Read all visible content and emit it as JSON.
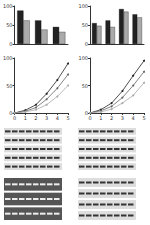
{
  "chart_data": [
    {
      "type": "bar",
      "categories": [
        null,
        null,
        null
      ],
      "ylim": [
        0,
        100
      ],
      "yticks": [
        0,
        50,
        100
      ],
      "series": [
        {
          "name": null,
          "color": "#222222",
          "values": [
            88,
            62,
            45
          ]
        },
        {
          "name": null,
          "color": "#aaaaaa",
          "values": [
            62,
            38,
            32
          ]
        }
      ]
    },
    {
      "type": "bar",
      "categories": [
        null,
        null,
        null,
        null
      ],
      "ylim": [
        0,
        100
      ],
      "yticks": [
        0,
        50,
        100
      ],
      "series": [
        {
          "name": null,
          "color": "#222222",
          "values": [
            55,
            62,
            92,
            78
          ]
        },
        {
          "name": null,
          "color": "#aaaaaa",
          "values": [
            48,
            45,
            85,
            70
          ]
        }
      ]
    },
    {
      "type": "line",
      "x": [
        0,
        1,
        2,
        3,
        4,
        5
      ],
      "xlim": [
        0,
        5
      ],
      "xticks": [
        0,
        1,
        2,
        3,
        4,
        5
      ],
      "ylim": [
        0,
        100
      ],
      "yticks": [
        0,
        50,
        100
      ],
      "marker": "circle",
      "series": [
        {
          "name": null,
          "color": "#222222",
          "values": [
            0,
            5,
            15,
            35,
            60,
            90
          ]
        },
        {
          "name": null,
          "color": "#666666",
          "values": [
            0,
            3,
            10,
            25,
            45,
            70
          ]
        },
        {
          "name": null,
          "color": "#aaaaaa",
          "values": [
            0,
            2,
            6,
            15,
            30,
            50
          ]
        }
      ]
    },
    {
      "type": "line",
      "x": [
        0,
        1,
        2,
        3,
        4,
        5
      ],
      "xlim": [
        0,
        5
      ],
      "xticks": [
        0,
        1,
        2,
        3,
        4,
        5
      ],
      "ylim": [
        0,
        100
      ],
      "yticks": [
        0,
        50,
        100
      ],
      "marker": "circle",
      "series": [
        {
          "name": null,
          "color": "#222222",
          "values": [
            0,
            6,
            18,
            40,
            68,
            95
          ]
        },
        {
          "name": null,
          "color": "#666666",
          "values": [
            0,
            4,
            12,
            28,
            50,
            75
          ]
        },
        {
          "name": null,
          "color": "#aaaaaa",
          "values": [
            0,
            2,
            7,
            18,
            32,
            55
          ]
        }
      ]
    }
  ]
}
